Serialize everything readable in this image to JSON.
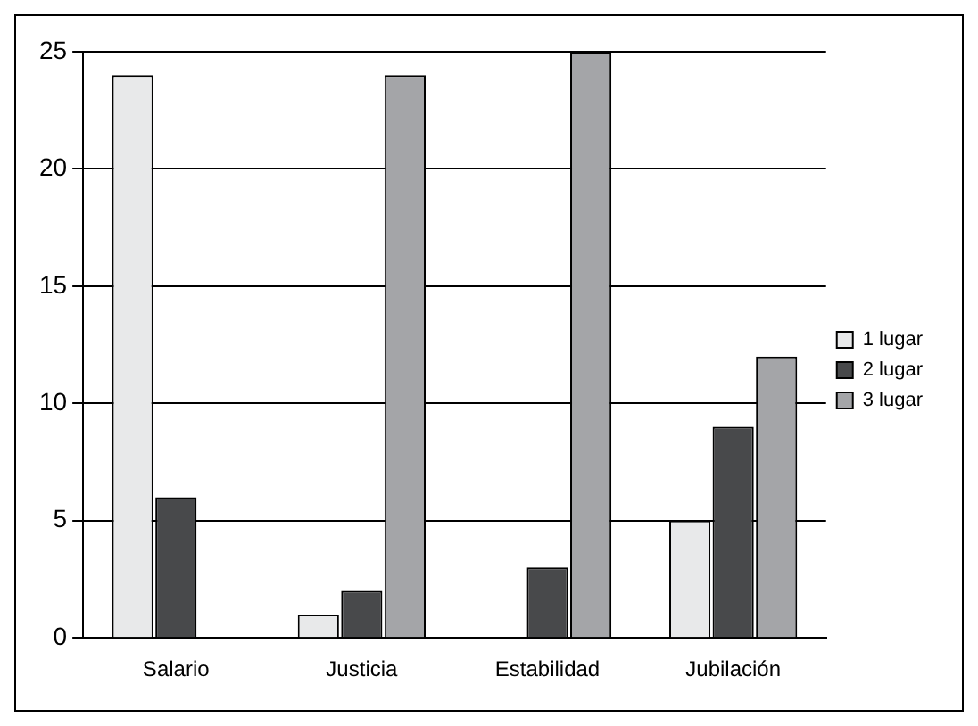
{
  "chart_data": {
    "type": "bar",
    "categories": [
      "Salario",
      "Justicia",
      "Estabilidad",
      "Jubilación"
    ],
    "series": [
      {
        "name": "1 lugar",
        "color": "#e8e9ea",
        "values": [
          24,
          1,
          0,
          5
        ]
      },
      {
        "name": "2 lugar",
        "color": "#48494b",
        "values": [
          6,
          2,
          3,
          9
        ]
      },
      {
        "name": "3 lugar",
        "color": "#a4a5a8",
        "values": [
          0,
          24,
          25,
          12
        ]
      }
    ],
    "ylim": [
      0,
      25
    ],
    "yticks": [
      0,
      5,
      10,
      15,
      20,
      25
    ],
    "grid": "y",
    "legend": "right"
  }
}
